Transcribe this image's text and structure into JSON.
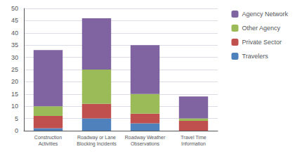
{
  "chart_data": {
    "type": "bar",
    "stacked": true,
    "categories": [
      "Construction\nActivities",
      "Roadway or Lane\nBlocking Incidents",
      "Roadway Weather\nObservations",
      "Travel Time\nInformation"
    ],
    "series": [
      {
        "name": "Travelers",
        "color": "#4F81BD",
        "values": [
          1,
          5,
          3,
          0
        ]
      },
      {
        "name": "Private Sector",
        "color": "#C0504D",
        "values": [
          5,
          6,
          4,
          4
        ]
      },
      {
        "name": "Other Agency",
        "color": "#9BBB59",
        "values": [
          4,
          14,
          8,
          1
        ]
      },
      {
        "name": "Agency Network",
        "color": "#8064A2",
        "values": [
          23,
          21,
          20,
          9
        ]
      }
    ],
    "ylim": [
      0,
      50
    ],
    "yticks": [
      0,
      5,
      10,
      15,
      20,
      25,
      30,
      35,
      40,
      45,
      50
    ],
    "grid": true,
    "legend": "right"
  }
}
